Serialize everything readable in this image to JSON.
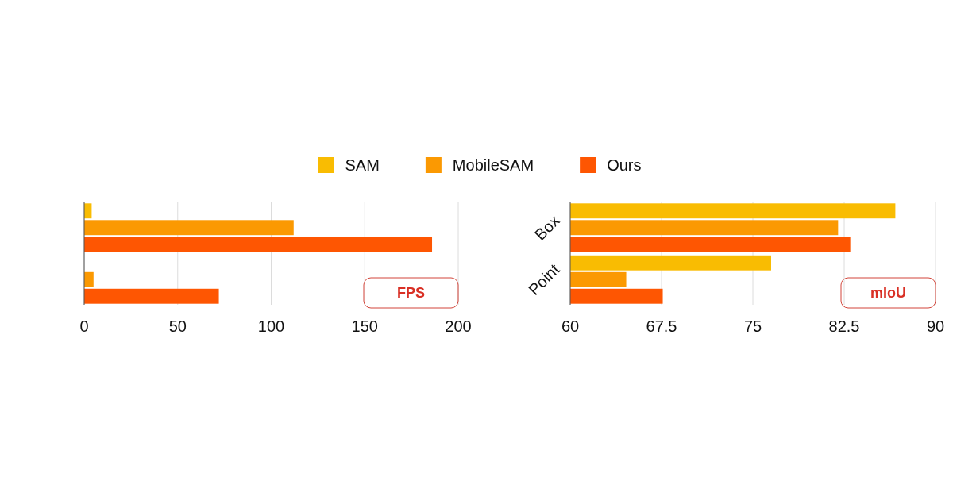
{
  "chart_data": [
    {
      "type": "bar",
      "orientation": "horizontal",
      "categories": [
        null,
        null
      ],
      "series": [
        {
          "name": "SAM",
          "color": "#f9bc02",
          "values": [
            4,
            null
          ]
        },
        {
          "name": "MobileSAM",
          "color": "#fb9902",
          "values": [
            112,
            5
          ]
        },
        {
          "name": "Ours",
          "color": "#fe5602",
          "values": [
            186,
            72
          ]
        }
      ],
      "xlim": [
        0,
        200
      ],
      "xticks": [
        0,
        50,
        100,
        150,
        200
      ],
      "grid": "x",
      "legend": "top",
      "annotations": [
        "FPS"
      ]
    },
    {
      "type": "bar",
      "orientation": "horizontal",
      "categories": [
        "Box",
        "Point"
      ],
      "series": [
        {
          "color": "#f9bc02",
          "values": [
            86.7,
            76.5
          ]
        },
        {
          "color": "#fb9902",
          "values": [
            82.0,
            64.6
          ]
        },
        {
          "color": "#fe5602",
          "values": [
            83.0,
            67.6
          ]
        }
      ],
      "xlim": [
        60,
        90
      ],
      "xticks": [
        60,
        67.5,
        75,
        82.5,
        90
      ],
      "grid": "x",
      "annotations": [
        "mIoU"
      ]
    }
  ]
}
